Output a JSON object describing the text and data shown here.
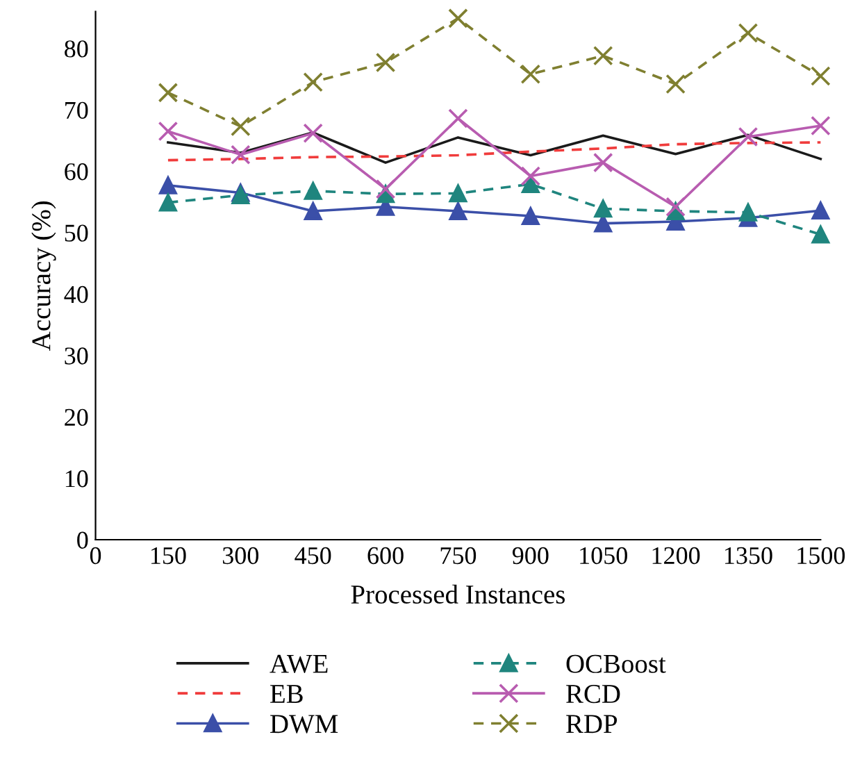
{
  "chart_data": {
    "type": "line",
    "xlabel": "Processed Instances",
    "ylabel": "Accuracy (%)",
    "x": [
      150,
      300,
      450,
      600,
      750,
      900,
      1050,
      1200,
      1350,
      1500
    ],
    "xlim": [
      0,
      1500
    ],
    "xticks": [
      0,
      150,
      300,
      450,
      600,
      750,
      900,
      1050,
      1200,
      1350,
      1500
    ],
    "ylim": [
      0,
      86
    ],
    "yticks": [
      0,
      10,
      20,
      30,
      40,
      50,
      60,
      70,
      80
    ],
    "grid": false,
    "legend": "bottom",
    "series": [
      {
        "name": "AWE",
        "color": "#1a1a1a",
        "line_style": "solid",
        "marker": "none",
        "values": [
          64.7,
          63.0,
          66.3,
          61.4,
          65.5,
          62.6,
          65.8,
          62.8,
          65.9,
          62.0
        ]
      },
      {
        "name": "EB",
        "color": "#f03c3c",
        "line_style": "dashed",
        "marker": "none",
        "values": [
          61.8,
          62.0,
          62.3,
          62.4,
          62.6,
          63.2,
          63.7,
          64.4,
          64.6,
          64.7
        ]
      },
      {
        "name": "DWM",
        "color": "#3b4fa8",
        "line_style": "solid",
        "marker": "triangle",
        "values": [
          57.7,
          56.5,
          53.5,
          54.2,
          53.5,
          52.7,
          51.5,
          51.8,
          52.4,
          53.6
        ]
      },
      {
        "name": "OCBoost",
        "color": "#1f857e",
        "line_style": "dashed",
        "marker": "triangle",
        "values": [
          54.9,
          56.1,
          56.8,
          56.3,
          56.4,
          57.9,
          53.9,
          53.5,
          53.3,
          49.7
        ]
      },
      {
        "name": "RCD",
        "color": "#b85cb0",
        "line_style": "solid",
        "marker": "cross",
        "values": [
          66.5,
          62.7,
          66.2,
          57.1,
          68.6,
          59.2,
          61.4,
          54.2,
          65.6,
          67.4
        ]
      },
      {
        "name": "RDP",
        "color": "#7f7f30",
        "line_style": "dashed",
        "marker": "cross",
        "values": [
          72.8,
          67.3,
          74.5,
          77.7,
          84.9,
          75.8,
          78.8,
          74.2,
          82.5,
          75.5
        ]
      }
    ]
  }
}
